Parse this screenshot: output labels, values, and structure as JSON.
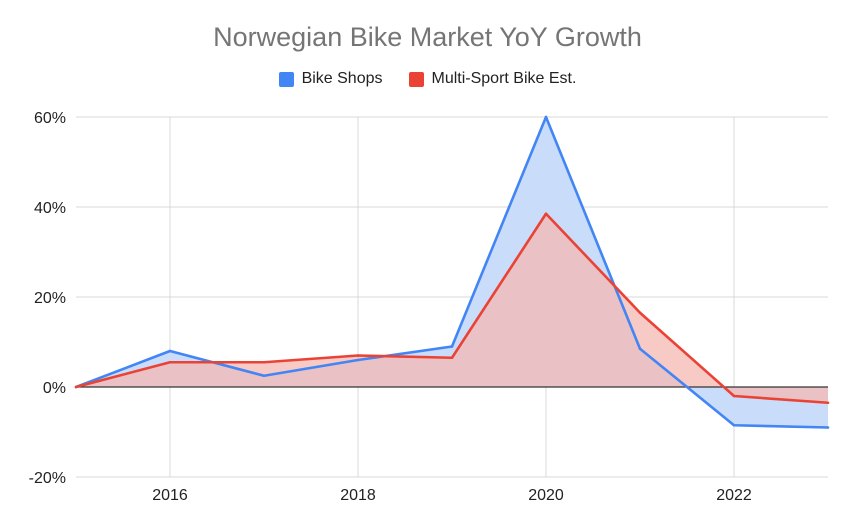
{
  "chart_data": {
    "type": "area",
    "title": "Norwegian Bike Market YoY Growth",
    "xlabel": "",
    "ylabel": "",
    "x": [
      2015,
      2016,
      2017,
      2018,
      2019,
      2020,
      2021,
      2022,
      2023
    ],
    "x_ticks": [
      "2016",
      "2018",
      "2020",
      "2022"
    ],
    "x_tick_values": [
      2016,
      2018,
      2020,
      2022
    ],
    "ylim": [
      -20,
      60
    ],
    "y_ticks": [
      "60%",
      "40%",
      "20%",
      "0%",
      "-20%"
    ],
    "y_tick_values": [
      60,
      40,
      20,
      0,
      -20
    ],
    "grid": true,
    "legend_position": "top",
    "series": [
      {
        "name": "Bike Shops",
        "color": "#4285f4",
        "fill": "#c9dcfa",
        "values": [
          0,
          8,
          2.5,
          6,
          9,
          60,
          8.5,
          -8.5,
          -9
        ]
      },
      {
        "name": "Multi-Sport Bike Est.",
        "color": "#ea4335",
        "fill": "#f4b8b2",
        "values": [
          0,
          5.5,
          5.5,
          7,
          6.5,
          38.5,
          16.5,
          -2,
          -3.5
        ]
      }
    ]
  }
}
